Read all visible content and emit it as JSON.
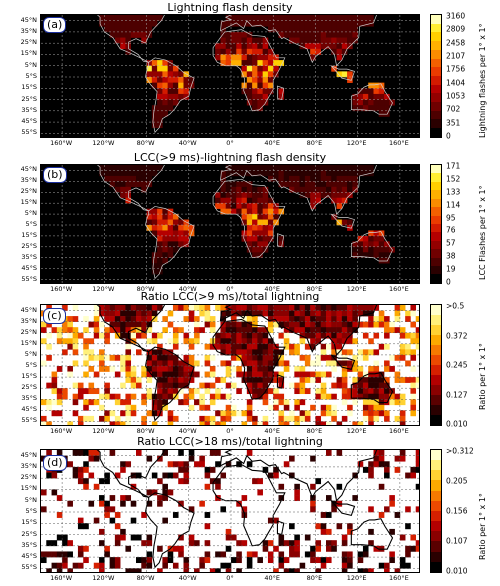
{
  "lat_ticks": [
    "45°N",
    "35°N",
    "25°N",
    "15°N",
    "5°N",
    "5°S",
    "15°S",
    "25°S",
    "35°S",
    "45°S",
    "55°S"
  ],
  "lon_ticks": [
    "160°W",
    "120°W",
    "80°W",
    "40°W",
    "0°",
    "40°E",
    "80°E",
    "120°E",
    "160°E"
  ],
  "colors": {
    "dark_ramp": [
      "#000000",
      "#2a0000",
      "#4d0000",
      "#700000",
      "#930000",
      "#b50000",
      "#d21a00",
      "#ea3b00",
      "#f36000",
      "#fa8c00",
      "#ffb000",
      "#ffd000",
      "#ffee33",
      "#ffffbb"
    ],
    "light_ramp": [
      "#000000",
      "#2a0000",
      "#5a0000",
      "#8a0000",
      "#b30000",
      "#d62000",
      "#ec4a00",
      "#f67a00",
      "#fcaa00",
      "#ffd233",
      "#fff07a",
      "#ffffcc"
    ]
  },
  "chart_data": [
    {
      "type": "heatmap",
      "panel_label": "(a)",
      "title": "Lightning flash density",
      "colorbar_label": "Lightning flashes per 1° x 1°",
      "colorbar_ticks": [
        "3160",
        "2809",
        "2458",
        "2107",
        "1756",
        "1404",
        "1053",
        "702",
        "351",
        "0"
      ],
      "colorbar_range": [
        0,
        3160
      ]
    },
    {
      "type": "heatmap",
      "panel_label": "(b)",
      "title": "LCC(>9 ms)-lightning flash density",
      "colorbar_label": "LCC Flashes per 1° x 1°",
      "colorbar_ticks": [
        "171",
        "152",
        "133",
        "114",
        "95",
        "76",
        "57",
        "38",
        "19",
        "0"
      ],
      "colorbar_range": [
        0,
        171
      ]
    },
    {
      "type": "heatmap",
      "panel_label": "(c)",
      "title": "Ratio LCC(>9 ms)/total lightning",
      "colorbar_label": "Ratio per 1° x 1°",
      "colorbar_ticks": [
        ">0.5",
        "0.372",
        "0.245",
        "0.127",
        "0.010"
      ],
      "colorbar_range": [
        0.01,
        0.5
      ]
    },
    {
      "type": "heatmap",
      "panel_label": "(d)",
      "title": "Ratio LCC(>18 ms)/total lightning",
      "colorbar_label": "Ratio per 1° x 1°",
      "colorbar_ticks": [
        ">0.312",
        "0.205",
        "0.156",
        "0.107",
        "0.010"
      ],
      "colorbar_range": [
        0.01,
        0.312
      ]
    }
  ]
}
